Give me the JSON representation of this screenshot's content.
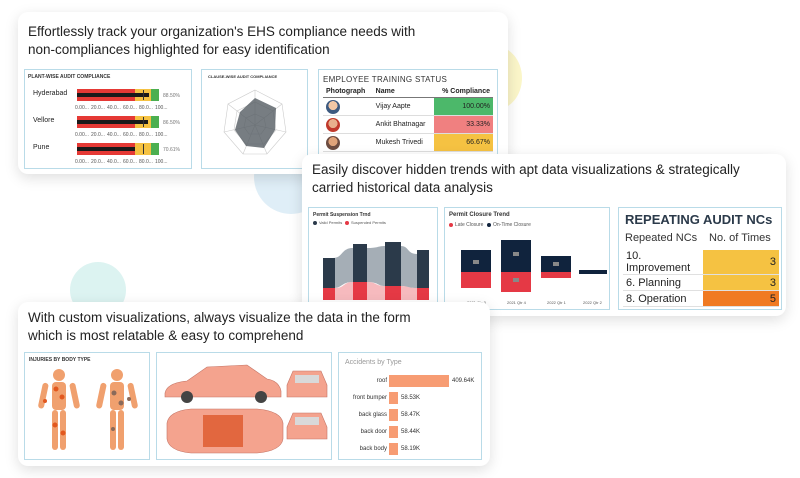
{
  "colors": {
    "accent_blue": "#b9dbe8",
    "blob_yellow": "#fbf6c9",
    "blob_blue": "#dfeef7",
    "blob_mint": "#dcf3f1",
    "good_green": "#4caf50",
    "warn_yellow": "#f5c242",
    "bad_red": "#e53935",
    "orange": "#f79c73"
  },
  "card1": {
    "title_line1": "Effortlessly track your organization's EHS compliance needs with",
    "title_line2": "non-compliances highlighted for easy identification",
    "plant_panel": {
      "title": "PLANT-WISE AUDIT COMPLIANCE",
      "rows": [
        {
          "label": "Hyderabad",
          "pct": "88.50%"
        },
        {
          "label": "Vellore",
          "pct": "86.50%"
        },
        {
          "label": "Pune",
          "pct": "70.61%"
        }
      ],
      "ticks": [
        "0.00...",
        "20.0...",
        "40.0...",
        "60.0...",
        "80.0...",
        "100..."
      ]
    },
    "radar_panel": {
      "title": "CLAUSE-WISE AUDIT COMPLIANCE"
    },
    "training_panel": {
      "title": "EMPLOYEE TRAINING STATUS",
      "headers": [
        "Photograph",
        "Name",
        "% Compliance"
      ],
      "rows": [
        {
          "name": "Vijay Aapte",
          "value": "100.00%",
          "color": "#4cb86a"
        },
        {
          "name": "Ankit Bhatnagar",
          "value": "33.33%",
          "color": "#f08080"
        },
        {
          "name": "Mukesh Trivedi",
          "value": "66.67%",
          "color": "#f5c242"
        }
      ]
    }
  },
  "card2": {
    "title_line1": "Easily discover hidden trends with apt data visualizations & strategically",
    "title_line2": "carried historical data analysis",
    "suspension_panel": {
      "title": "Permit Suspension Trnd",
      "legend": [
        "Valid Permits",
        "Suspended Permits"
      ]
    },
    "closure_panel": {
      "title": "Permit Closure Trend",
      "legend": [
        "Late Closure",
        "On-Time Closure"
      ],
      "quarters": [
        "2021 Qtr 3",
        "2021 Qtr 4",
        "2022 Qtr 1",
        "2022 Qtr 2"
      ]
    },
    "audit_panel": {
      "title": "REPEATING AUDIT NCs",
      "headers": [
        "Repeated NCs",
        "No. of Times"
      ],
      "rows": [
        {
          "name": "10. Improvement",
          "value": "3",
          "color": "#f5c242"
        },
        {
          "name": "6. Planning",
          "value": "3",
          "color": "#f5c242"
        },
        {
          "name": "8. Operation",
          "value": "5",
          "color": "#f07a22"
        }
      ]
    }
  },
  "card3": {
    "title_line1": "With custom visualizations, always visualize the data in the form",
    "title_line2": "which is most relatable & easy to comprehend",
    "injury_panel": {
      "title": "INJURIES BY BODY TYPE"
    },
    "accidents_panel": {
      "title": "Accidents by Type",
      "bars": [
        {
          "label": "roof",
          "value": 409.64,
          "text": "409.64K"
        },
        {
          "label": "front bumper",
          "value": 58.53,
          "text": "58.53K"
        },
        {
          "label": "back glass",
          "value": 58.47,
          "text": "58.47K"
        },
        {
          "label": "back door",
          "value": 58.44,
          "text": "58.44K"
        },
        {
          "label": "back body",
          "value": 58.19,
          "text": "58.19K"
        }
      ]
    }
  }
}
